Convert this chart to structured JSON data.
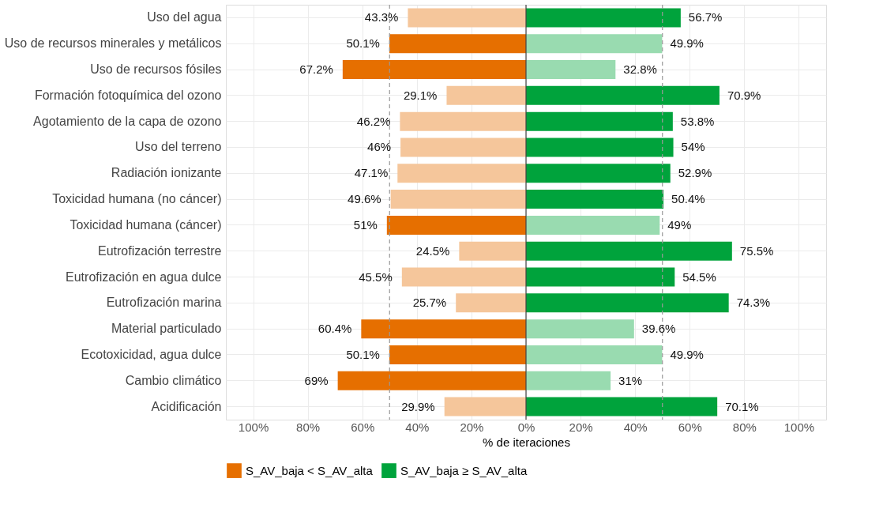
{
  "chart_data": {
    "type": "bar",
    "orientation": "horizontal",
    "xlabel": "% de iteraciones",
    "categories": [
      "Uso del agua",
      "Uso de recursos minerales y metálicos",
      "Uso de recursos fósiles",
      "Formación fotoquímica del ozono",
      "Agotamiento de la capa de ozono",
      "Uso del terreno",
      "Radiación ionizante",
      "Toxicidad humana (no cáncer)",
      "Toxicidad humana (cáncer)",
      "Eutrofización terrestre",
      "Eutrofización en agua dulce",
      "Eutrofización marina",
      "Material particulado",
      "Ecotoxicidad, agua dulce",
      "Cambio climático",
      "Acidificación"
    ],
    "series": [
      {
        "name": "S_AV_baja < S_AV_alta",
        "color": "#e66f00",
        "values": [
          43.3,
          50.1,
          67.2,
          29.1,
          46.2,
          46,
          47.1,
          49.6,
          51,
          24.5,
          45.5,
          25.7,
          60.4,
          50.1,
          69,
          29.9
        ],
        "base": [
          -43.3,
          -50.1,
          -67.2,
          -29.1,
          -46.2,
          -46,
          -47.1,
          -49.6,
          -51,
          -24.5,
          -45.5,
          -25.7,
          -60.4,
          -50.1,
          -69,
          -29.9
        ],
        "colors": [
          "#f5c69b",
          "#e66f00",
          "#e66f00",
          "#f5c69b",
          "#f5c69b",
          "#f5c69b",
          "#f5c69b",
          "#f5c69b",
          "#e66f00",
          "#f5c69b",
          "#f5c69b",
          "#f5c69b",
          "#e66f00",
          "#e66f00",
          "#e66f00",
          "#f5c69b"
        ],
        "value_labels": [
          "43.3%",
          "50.1%",
          "67.2%",
          "29.1%",
          "46.2%",
          "46%",
          "47.1%",
          "49.6%",
          "51%",
          "24.5%",
          "45.5%",
          "25.7%",
          "60.4%",
          "50.1%",
          "69%",
          "29.9%"
        ]
      },
      {
        "name": "S_AV_baja ≥ S_AV_alta",
        "color": "#00a33c",
        "values": [
          56.7,
          49.9,
          32.8,
          70.9,
          53.8,
          54,
          52.9,
          50.4,
          49,
          75.5,
          54.5,
          74.3,
          39.6,
          49.9,
          31,
          70.1
        ],
        "colors": [
          "#00a33c",
          "#99dbb0",
          "#99dbb0",
          "#00a33c",
          "#00a33c",
          "#00a33c",
          "#00a33c",
          "#00a33c",
          "#99dbb0",
          "#00a33c",
          "#00a33c",
          "#00a33c",
          "#99dbb0",
          "#99dbb0",
          "#99dbb0",
          "#00a33c"
        ],
        "value_labels": [
          "56.7%",
          "49.9%",
          "32.8%",
          "70.9%",
          "53.8%",
          "54%",
          "52.9%",
          "50.4%",
          "49%",
          "75.5%",
          "54.5%",
          "74.3%",
          "39.6%",
          "49.9%",
          "31%",
          "70.1%"
        ]
      }
    ],
    "xlim": [
      -110,
      110
    ],
    "xticks": [
      {
        "value": -100,
        "label": "100%"
      },
      {
        "value": -80,
        "label": "80%"
      },
      {
        "value": -60,
        "label": "60%"
      },
      {
        "value": -40,
        "label": "40%"
      },
      {
        "value": -20,
        "label": "20%"
      },
      {
        "value": 0,
        "label": "0%"
      },
      {
        "value": 20,
        "label": "20%"
      },
      {
        "value": 40,
        "label": "40%"
      },
      {
        "value": 60,
        "label": "60%"
      },
      {
        "value": 80,
        "label": "80%"
      },
      {
        "value": 100,
        "label": "100%"
      }
    ],
    "ref_lines": [
      {
        "axis": "x",
        "value": -50,
        "line_style": "dashed",
        "color": "#999999"
      },
      {
        "axis": "x",
        "value": 50,
        "line_style": "dashed",
        "color": "#999999"
      },
      {
        "axis": "x",
        "value": 0,
        "line_style": "solid",
        "color": "#444444"
      }
    ],
    "grid": true,
    "legend": "bottom"
  }
}
